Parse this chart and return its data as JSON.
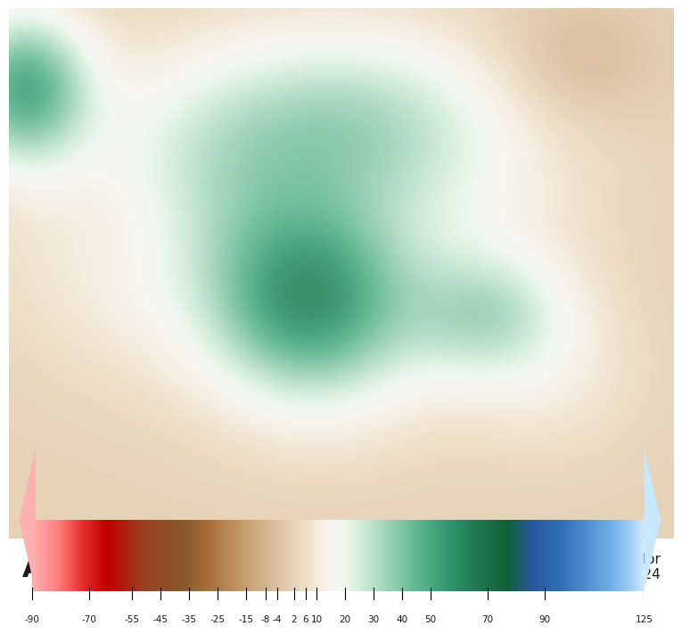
{
  "title": "Anomaly monthly precipitation (mm)",
  "valid_for": "Valid for\nAugust 2024",
  "colorbar_ticks": [
    -90,
    -70,
    -55,
    -45,
    -35,
    -25,
    -15,
    -8,
    -4,
    2,
    6,
    10,
    20,
    30,
    40,
    50,
    70,
    90,
    125
  ],
  "colorbar_colors": [
    "#ffffff",
    "#ffc0c0",
    "#ff8080",
    "#e00000",
    "#c00000",
    "#a05030",
    "#906040",
    "#c09070",
    "#d4b896",
    "#e8d8c0",
    "#f5f0ea",
    "#e0f0e8",
    "#b8ddc8",
    "#80c8a8",
    "#40a888",
    "#208060",
    "#106848",
    "#0a5030",
    "#003820",
    "#3060a0",
    "#4080c0",
    "#60a0d8",
    "#80c0f0",
    "#b0d8f8",
    "#d8ecff"
  ],
  "map_image_url": null,
  "background_color": "#f5f0ea",
  "panel_bg": "#ffffff",
  "title_fontsize": 22,
  "valid_fontsize": 11
}
